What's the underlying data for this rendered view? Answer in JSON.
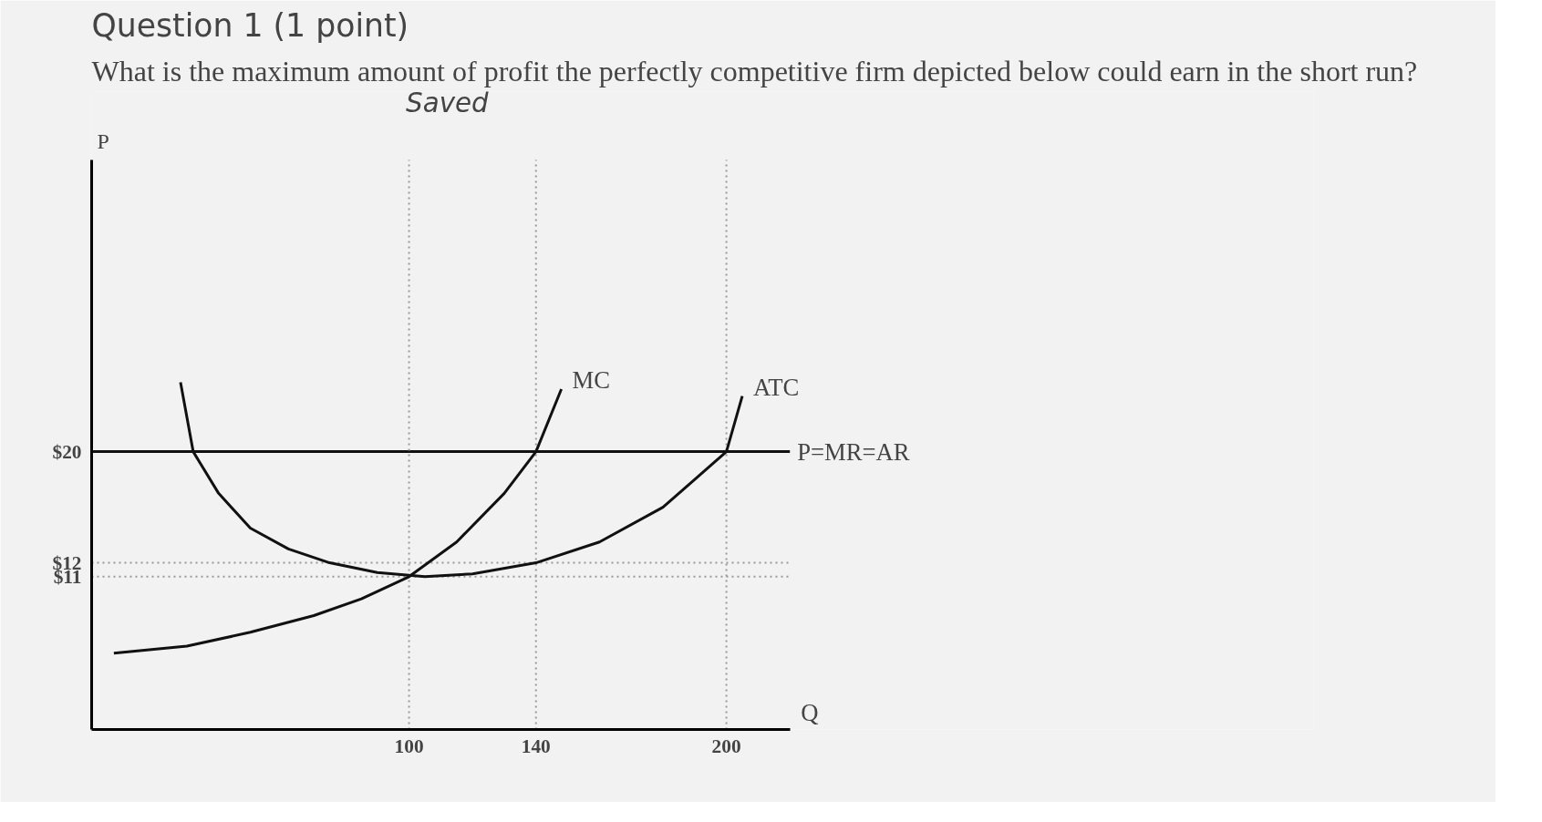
{
  "chart_data": {
    "type": "line",
    "title": "Question 1 (1 point)",
    "subtitle": "What is the maximum amount of profit the perfectly competitive firm depicted below could earn in the short run?",
    "annotations": [
      "Saved"
    ],
    "xlabel": "Q",
    "ylabel": "P",
    "series": [
      {
        "name": "MC",
        "color": "#111111",
        "x": [
          7,
          30,
          50,
          70,
          85,
          100,
          115,
          130,
          140,
          148
        ],
        "values": [
          5.5,
          6,
          7,
          8.2,
          9.4,
          11,
          13.5,
          17,
          20,
          24.5
        ]
      },
      {
        "name": "ATC",
        "color": "#111111",
        "x": [
          28,
          32,
          40,
          50,
          62,
          75,
          90,
          105,
          120,
          140,
          160,
          180,
          200,
          205
        ],
        "values": [
          25,
          20,
          17,
          14.5,
          13,
          12,
          11.3,
          11,
          11.2,
          12,
          13.5,
          16,
          20,
          24
        ]
      }
    ],
    "xlim": [
      0,
      220
    ],
    "ylim": [
      0,
      41
    ],
    "xticks": [
      100,
      140,
      200
    ],
    "yticks": [
      {
        "value": 11,
        "label": "$11"
      },
      {
        "value": 12,
        "label": "$12"
      },
      {
        "value": 20,
        "label": "$20"
      }
    ],
    "ref_lines": [
      {
        "axis": "y",
        "value": 20,
        "label": "P=MR=AR",
        "color": "#111111",
        "line_style": "solid"
      },
      {
        "axis": "y",
        "value": 12,
        "color": "#999999",
        "line_style": "dotted"
      },
      {
        "axis": "y",
        "value": 11,
        "color": "#999999",
        "line_style": "dotted"
      },
      {
        "axis": "x",
        "value": 100,
        "color": "#999999",
        "line_style": "dotted"
      },
      {
        "axis": "x",
        "value": 140,
        "color": "#999999",
        "line_style": "dotted"
      },
      {
        "axis": "x",
        "value": 200,
        "color": "#999999",
        "line_style": "dotted"
      }
    ],
    "grid": false,
    "line_style": "solid",
    "marker": "none"
  }
}
